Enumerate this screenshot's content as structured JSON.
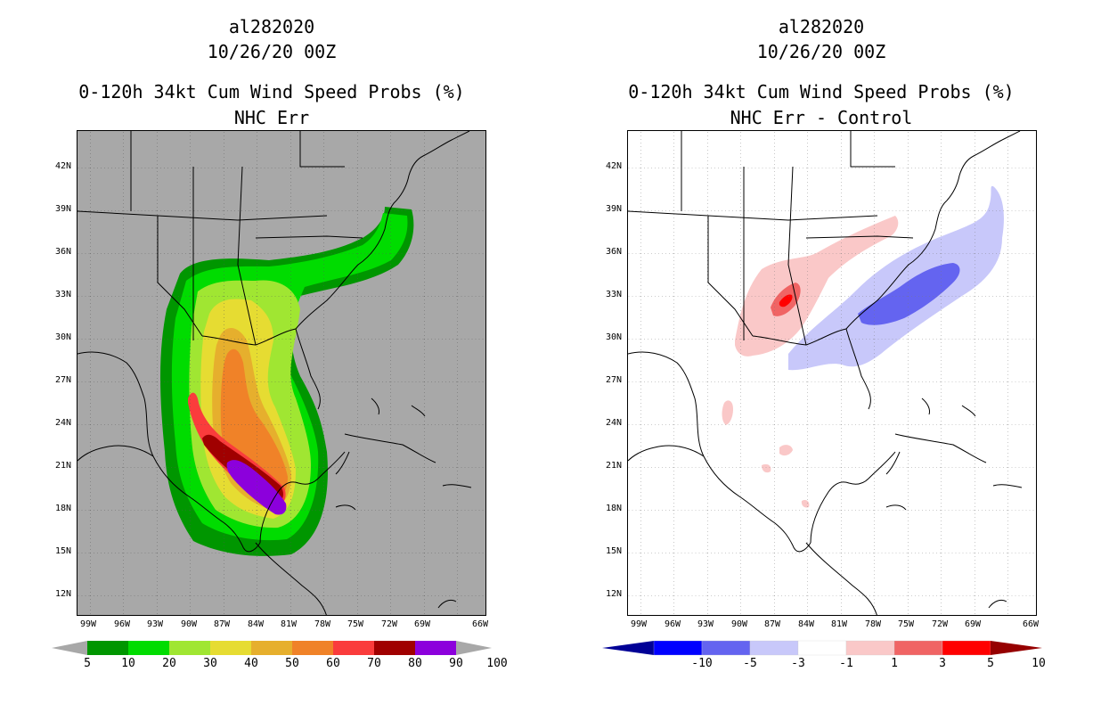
{
  "left_panel": {
    "storm_id": "al282020",
    "datetime": "10/26/20 00Z",
    "title": "0-120h 34kt Cum Wind Speed Probs (%)",
    "subtitle": "NHC Err",
    "lat_labels": [
      "42N",
      "39N",
      "36N",
      "33N",
      "30N",
      "27N",
      "24N",
      "21N",
      "18N",
      "15N",
      "12N"
    ],
    "lon_labels": [
      "99W",
      "96W",
      "93W",
      "90W",
      "87W",
      "84W",
      "81W",
      "78W",
      "75W",
      "72W",
      "69W",
      "66W"
    ],
    "colorbar": {
      "labels": [
        "5",
        "10",
        "20",
        "30",
        "40",
        "50",
        "60",
        "70",
        "80",
        "90",
        "100"
      ],
      "colors": [
        "#009600",
        "#00dc00",
        "#a0e632",
        "#e6dc32",
        "#e6af2d",
        "#f08228",
        "#fa3c3c",
        "#a00000",
        "#8c00dc"
      ]
    }
  },
  "right_panel": {
    "storm_id": "al282020",
    "datetime": "10/26/20 00Z",
    "title": "0-120h 34kt Cum Wind Speed Probs (%)",
    "subtitle": "NHC Err - Control",
    "lat_labels": [
      "42N",
      "39N",
      "36N",
      "33N",
      "30N",
      "27N",
      "24N",
      "21N",
      "18N",
      "15N",
      "12N"
    ],
    "lon_labels": [
      "99W",
      "96W",
      "93W",
      "90W",
      "87W",
      "84W",
      "81W",
      "78W",
      "75W",
      "72W",
      "69W",
      "66W"
    ],
    "colorbar": {
      "labels": [
        "-10",
        "-5",
        "-3",
        "-1",
        "1",
        "3",
        "5",
        "10"
      ],
      "colors": [
        "#000096",
        "#0000ff",
        "#6464f0",
        "#c8c8fa",
        "#ffffff",
        "#fac8c8",
        "#f06464",
        "#ff0000",
        "#960000"
      ]
    }
  }
}
